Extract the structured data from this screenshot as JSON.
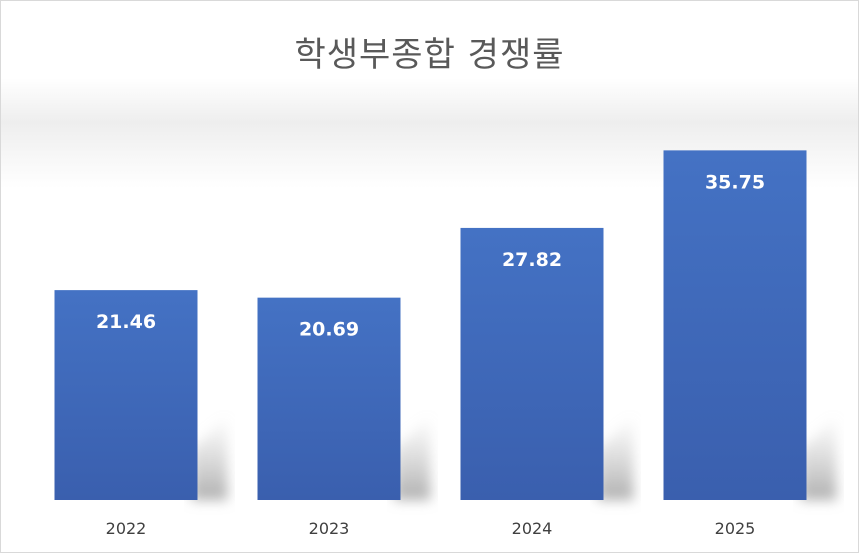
{
  "chart_data": {
    "type": "bar",
    "title": "학생부종합 경쟁률",
    "categories": [
      "2022",
      "2023",
      "2024",
      "2025"
    ],
    "values": [
      21.46,
      20.69,
      27.82,
      35.75
    ],
    "xlabel": "",
    "ylabel": "",
    "data_labels": true,
    "grid": false,
    "legend": "none",
    "colors": {
      "bar": "#4472C4",
      "bar_dark": "#3A5FAE",
      "label": "#FFFFFF",
      "title": "#595959",
      "axis_text": "#404040"
    }
  }
}
